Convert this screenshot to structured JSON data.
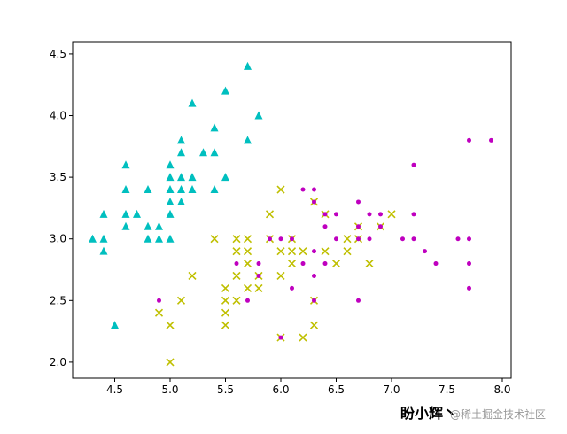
{
  "chart_data": {
    "type": "scatter",
    "xlim": [
      4.12,
      8.08
    ],
    "ylim": [
      1.87,
      4.6
    ],
    "xticks": [
      4.5,
      {
        "value": 5,
        "label": "5.0"
      },
      5.5,
      {
        "value": 6,
        "label": "6.0"
      },
      6.5,
      {
        "value": 7,
        "label": "7.0"
      },
      7.5,
      {
        "value": 8,
        "label": "8.0"
      }
    ],
    "yticks": [
      {
        "value": 2,
        "label": "2.0"
      },
      2.5,
      {
        "value": 3,
        "label": "3.0"
      },
      3.5,
      {
        "value": 4,
        "label": "4.0"
      },
      4.5
    ],
    "series": [
      {
        "color": "#00bfbf",
        "marker": "triangle",
        "x": [
          4.3,
          4.4,
          4.4,
          4.4,
          4.5,
          4.6,
          4.6,
          4.6,
          4.6,
          4.7,
          4.8,
          4.8,
          4.8,
          4.9,
          4.9,
          5.0,
          5.0,
          5.0,
          5.0,
          5.0,
          5.0,
          5.1,
          5.1,
          5.1,
          5.1,
          5.1,
          5.2,
          5.2,
          5.2,
          5.3,
          5.4,
          5.4,
          5.4,
          5.5,
          5.5,
          5.7,
          5.7,
          5.8
        ],
        "values": [
          3.0,
          3.0,
          3.2,
          2.9,
          2.3,
          3.6,
          3.4,
          3.2,
          3.1,
          3.2,
          3.4,
          3.1,
          3.0,
          3.1,
          3.0,
          3.6,
          3.5,
          3.4,
          3.3,
          3.2,
          3.0,
          3.8,
          3.7,
          3.5,
          3.4,
          3.3,
          4.1,
          3.5,
          3.4,
          3.7,
          3.9,
          3.7,
          3.4,
          4.2,
          3.5,
          4.4,
          3.8,
          4.0
        ]
      },
      {
        "color": "#bfbf00",
        "marker": "x",
        "x": [
          4.9,
          5.0,
          5.0,
          5.1,
          5.2,
          5.4,
          5.5,
          5.5,
          5.5,
          5.5,
          5.6,
          5.6,
          5.6,
          5.6,
          5.7,
          5.7,
          5.7,
          5.7,
          5.8,
          5.8,
          5.9,
          5.9,
          6.0,
          6.0,
          6.0,
          6.0,
          6.1,
          6.1,
          6.1,
          6.2,
          6.2,
          6.3,
          6.3,
          6.3,
          6.4,
          6.4,
          6.5,
          6.6,
          6.6,
          6.7,
          6.7,
          6.8,
          6.9,
          7.0
        ],
        "values": [
          2.4,
          2.3,
          2.0,
          2.5,
          2.7,
          3.0,
          2.6,
          2.5,
          2.4,
          2.3,
          3.0,
          2.9,
          2.7,
          2.5,
          3.0,
          2.9,
          2.8,
          2.6,
          2.7,
          2.6,
          3.2,
          3.0,
          3.4,
          2.9,
          2.7,
          2.2,
          3.0,
          2.9,
          2.8,
          2.9,
          2.2,
          3.3,
          2.5,
          2.3,
          3.2,
          2.9,
          2.8,
          3.0,
          2.9,
          3.1,
          3.0,
          2.8,
          3.1,
          3.2
        ]
      },
      {
        "color": "#bf00bf",
        "marker": "dot",
        "x": [
          4.9,
          5.6,
          5.7,
          5.8,
          5.8,
          5.9,
          6.0,
          6.0,
          6.1,
          6.1,
          6.2,
          6.2,
          6.3,
          6.3,
          6.3,
          6.3,
          6.3,
          6.4,
          6.4,
          6.4,
          6.5,
          6.5,
          6.7,
          6.7,
          6.7,
          6.7,
          6.8,
          6.8,
          6.9,
          6.9,
          7.1,
          7.2,
          7.2,
          7.2,
          7.3,
          7.4,
          7.6,
          7.7,
          7.7,
          7.7,
          7.7,
          7.9
        ],
        "values": [
          2.5,
          2.8,
          2.5,
          2.8,
          2.7,
          3.0,
          3.0,
          2.2,
          3.0,
          2.6,
          3.4,
          2.8,
          3.4,
          3.3,
          2.9,
          2.7,
          2.5,
          3.2,
          3.1,
          2.8,
          3.2,
          3.0,
          3.3,
          3.1,
          3.0,
          2.5,
          3.2,
          3.0,
          3.2,
          3.1,
          3.0,
          3.6,
          3.2,
          3.0,
          2.9,
          2.8,
          3.0,
          3.8,
          3.0,
          2.8,
          2.6,
          3.8
        ]
      }
    ],
    "watermark": [
      "盼小辉丶",
      "@稀土掘金技术社区"
    ]
  }
}
